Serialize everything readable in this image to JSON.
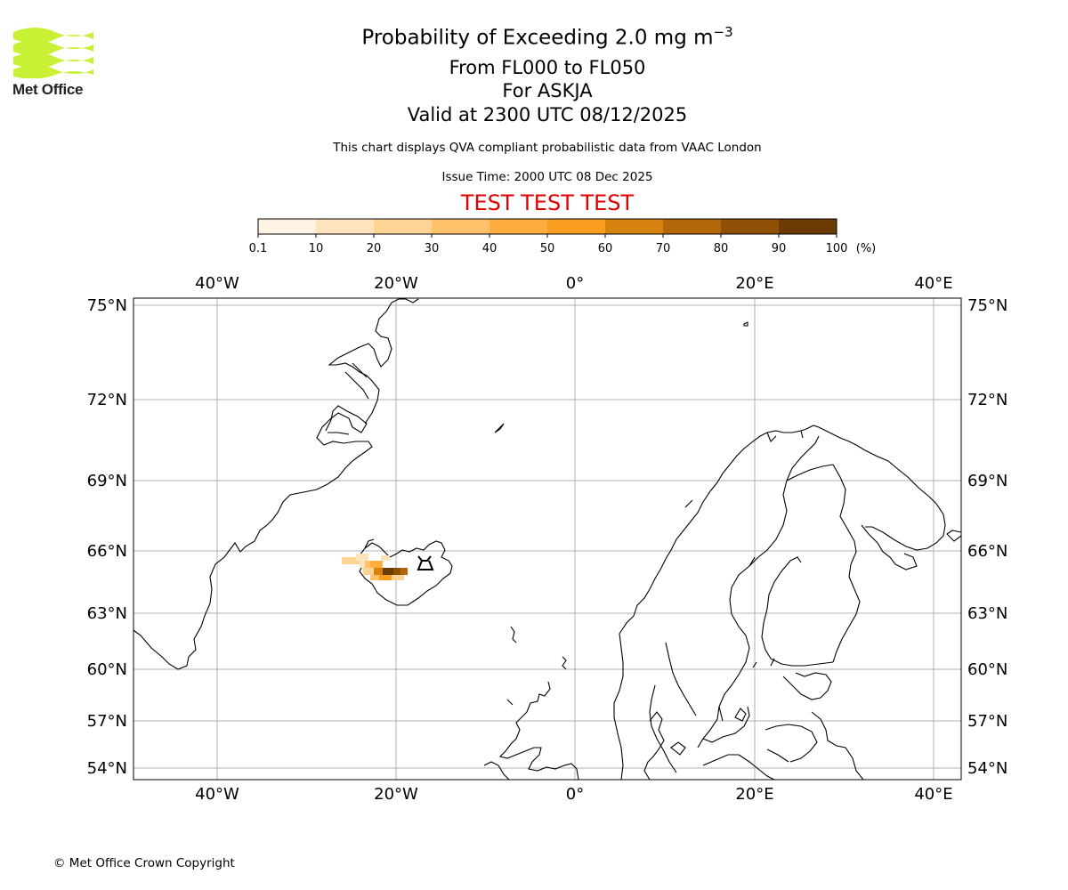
{
  "logo": {
    "brand_name": "Met Office"
  },
  "header": {
    "title_main": "Probability of Exceeding 2.0 mg m",
    "title_superscript": "−3",
    "level_range": "From FL000 to FL050",
    "volcano": "For ASKJA",
    "valid_time": "Valid at 2300 UTC 08/12/2025",
    "description": "This chart displays QVA compliant probabilistic data from VAAC London",
    "issue_time": "Issue Time: 2000 UTC 08 Dec 2025",
    "test_banner": "TEST TEST TEST"
  },
  "colorbar": {
    "ticks": [
      "0.1",
      "10",
      "20",
      "30",
      "40",
      "50",
      "60",
      "70",
      "80",
      "90",
      "100"
    ],
    "unit": "(%)",
    "colors": [
      "#fff4e3",
      "#ffe3bd",
      "#ffd393",
      "#ffc169",
      "#ffad3e",
      "#f89d1e",
      "#d6820f",
      "#b46709",
      "#8f5005",
      "#6a3b03"
    ]
  },
  "map": {
    "lon_labels": [
      "40°W",
      "20°W",
      "0°",
      "20°E",
      "40°E"
    ],
    "lat_labels": [
      "75°N",
      "72°N",
      "69°N",
      "66°N",
      "63°N",
      "60°N",
      "57°N",
      "54°N"
    ],
    "volcano_symbol": "volcano-icon"
  },
  "footer": {
    "copyright": "© Met Office Crown Copyright"
  }
}
